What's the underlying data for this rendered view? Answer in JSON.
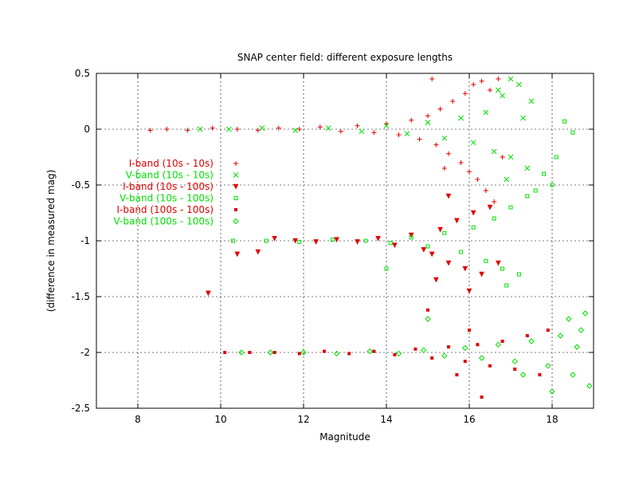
{
  "chart_data": {
    "type": "scatter",
    "title": "SNAP center field: different exposure lengths",
    "xlabel": "Magnitude",
    "ylabel": "(difference in measured mag)",
    "xlim": [
      7,
      19
    ],
    "ylim": [
      -2.5,
      0.5
    ],
    "xticks": [
      8,
      10,
      12,
      14,
      16,
      18
    ],
    "xtick_labels": [
      "8",
      "10",
      "12",
      "14",
      "16",
      "18"
    ],
    "yticks": [
      0.5,
      0,
      -0.5,
      -1,
      -1.5,
      -2,
      -2.5
    ],
    "ytick_labels": [
      "0.5",
      "0",
      "-0.5",
      "-1",
      "-1.5",
      "-2",
      "-2.5"
    ],
    "grid": true,
    "legend_position": "left",
    "series": [
      {
        "name": "I-band (10s - 10s)",
        "color": "#e00000",
        "marker": "plus",
        "points": [
          [
            8.3,
            -0.01
          ],
          [
            8.7,
            0.0
          ],
          [
            9.2,
            -0.01
          ],
          [
            9.8,
            0.01
          ],
          [
            10.4,
            0.0
          ],
          [
            10.9,
            -0.01
          ],
          [
            11.4,
            0.01
          ],
          [
            11.9,
            0.0
          ],
          [
            12.4,
            0.02
          ],
          [
            12.9,
            -0.02
          ],
          [
            13.3,
            0.03
          ],
          [
            13.7,
            -0.03
          ],
          [
            14.0,
            0.05
          ],
          [
            14.3,
            -0.05
          ],
          [
            14.6,
            0.08
          ],
          [
            14.8,
            -0.09
          ],
          [
            15.0,
            0.12
          ],
          [
            15.2,
            -0.14
          ],
          [
            15.3,
            0.18
          ],
          [
            15.5,
            -0.22
          ],
          [
            15.6,
            0.25
          ],
          [
            15.8,
            -0.3
          ],
          [
            15.9,
            0.32
          ],
          [
            16.0,
            -0.38
          ],
          [
            16.1,
            0.4
          ],
          [
            16.2,
            -0.45
          ],
          [
            16.3,
            0.43
          ],
          [
            16.4,
            -0.55
          ],
          [
            16.5,
            0.35
          ],
          [
            16.6,
            -0.65
          ],
          [
            16.7,
            0.45
          ],
          [
            15.1,
            0.45
          ],
          [
            15.4,
            -0.35
          ],
          [
            16.8,
            -0.25
          ]
        ]
      },
      {
        "name": "V-band (10s - 10s)",
        "color": "#00e000",
        "marker": "cross",
        "points": [
          [
            9.5,
            0.0
          ],
          [
            10.2,
            0.0
          ],
          [
            11.0,
            0.01
          ],
          [
            11.8,
            -0.01
          ],
          [
            12.6,
            0.01
          ],
          [
            13.4,
            -0.02
          ],
          [
            14.0,
            0.03
          ],
          [
            14.5,
            -0.04
          ],
          [
            15.0,
            0.06
          ],
          [
            15.4,
            -0.08
          ],
          [
            15.8,
            0.1
          ],
          [
            16.1,
            -0.12
          ],
          [
            16.4,
            0.15
          ],
          [
            16.6,
            -0.2
          ],
          [
            16.8,
            0.3
          ],
          [
            17.0,
            -0.25
          ],
          [
            17.2,
            0.4
          ],
          [
            17.4,
            -0.35
          ],
          [
            17.0,
            0.45
          ],
          [
            16.9,
            -0.45
          ],
          [
            17.3,
            0.1
          ],
          [
            16.7,
            0.35
          ],
          [
            17.5,
            0.25
          ]
        ]
      },
      {
        "name": "I-band (10s - 100s)",
        "color": "#e00000",
        "marker": "tri",
        "points": [
          [
            9.7,
            -1.47
          ],
          [
            10.4,
            -1.12
          ],
          [
            10.9,
            -1.1
          ],
          [
            11.3,
            -0.98
          ],
          [
            11.8,
            -1.0
          ],
          [
            12.3,
            -1.01
          ],
          [
            12.8,
            -0.99
          ],
          [
            13.3,
            -1.01
          ],
          [
            13.8,
            -0.98
          ],
          [
            14.2,
            -1.04
          ],
          [
            14.6,
            -0.95
          ],
          [
            14.9,
            -1.08
          ],
          [
            15.1,
            -1.12
          ],
          [
            15.3,
            -0.9
          ],
          [
            15.5,
            -1.2
          ],
          [
            15.7,
            -0.82
          ],
          [
            15.9,
            -1.25
          ],
          [
            16.1,
            -0.75
          ],
          [
            16.3,
            -1.3
          ],
          [
            16.5,
            -0.7
          ],
          [
            16.7,
            -1.2
          ],
          [
            15.2,
            -1.35
          ],
          [
            15.5,
            -0.6
          ],
          [
            16.0,
            -1.45
          ]
        ]
      },
      {
        "name": "V-band (10s - 100s)",
        "color": "#00e000",
        "marker": "square",
        "points": [
          [
            10.3,
            -1.0
          ],
          [
            11.1,
            -1.0
          ],
          [
            11.9,
            -1.01
          ],
          [
            12.7,
            -0.99
          ],
          [
            13.5,
            -1.0
          ],
          [
            14.1,
            -1.02
          ],
          [
            14.6,
            -0.97
          ],
          [
            15.0,
            -1.05
          ],
          [
            15.4,
            -0.93
          ],
          [
            15.8,
            -1.1
          ],
          [
            16.1,
            -0.88
          ],
          [
            16.4,
            -1.18
          ],
          [
            16.6,
            -0.8
          ],
          [
            16.8,
            -1.25
          ],
          [
            17.0,
            -0.7
          ],
          [
            17.2,
            -1.3
          ],
          [
            17.4,
            -0.6
          ],
          [
            17.6,
            -0.55
          ],
          [
            17.8,
            -0.4
          ],
          [
            18.1,
            -0.25
          ],
          [
            18.0,
            -0.5
          ],
          [
            18.5,
            -0.03
          ],
          [
            14.0,
            -1.25
          ],
          [
            16.9,
            -1.4
          ],
          [
            18.3,
            0.07
          ]
        ]
      },
      {
        "name": "I-band (100s - 100s)",
        "color": "#e00000",
        "marker": "filled-square",
        "points": [
          [
            10.1,
            -2.0
          ],
          [
            10.7,
            -2.0
          ],
          [
            11.3,
            -2.0
          ],
          [
            11.9,
            -2.01
          ],
          [
            12.5,
            -1.99
          ],
          [
            13.1,
            -2.01
          ],
          [
            13.7,
            -1.99
          ],
          [
            14.2,
            -2.02
          ],
          [
            14.7,
            -1.97
          ],
          [
            15.1,
            -2.05
          ],
          [
            15.5,
            -1.95
          ],
          [
            15.9,
            -2.08
          ],
          [
            16.2,
            -1.93
          ],
          [
            16.5,
            -2.12
          ],
          [
            16.8,
            -1.9
          ],
          [
            17.1,
            -2.15
          ],
          [
            17.4,
            -1.85
          ],
          [
            17.7,
            -2.2
          ],
          [
            17.9,
            -1.8
          ],
          [
            16.3,
            -2.4
          ],
          [
            15.7,
            -2.2
          ],
          [
            15.0,
            -1.62
          ],
          [
            16.0,
            -1.8
          ]
        ]
      },
      {
        "name": "V-band (100s - 100s)",
        "color": "#00e000",
        "marker": "diamond",
        "points": [
          [
            10.5,
            -2.0
          ],
          [
            11.2,
            -2.0
          ],
          [
            12.0,
            -2.0
          ],
          [
            12.8,
            -2.01
          ],
          [
            13.6,
            -1.99
          ],
          [
            14.3,
            -2.01
          ],
          [
            14.9,
            -1.98
          ],
          [
            15.4,
            -2.03
          ],
          [
            15.9,
            -1.96
          ],
          [
            16.3,
            -2.05
          ],
          [
            16.7,
            -1.93
          ],
          [
            17.1,
            -2.08
          ],
          [
            17.5,
            -1.9
          ],
          [
            17.9,
            -2.12
          ],
          [
            18.2,
            -1.85
          ],
          [
            18.5,
            -2.2
          ],
          [
            18.7,
            -1.8
          ],
          [
            18.9,
            -2.3
          ],
          [
            18.4,
            -1.7
          ],
          [
            18.0,
            -2.35
          ],
          [
            18.8,
            -1.65
          ],
          [
            17.3,
            -2.2
          ],
          [
            15.0,
            -1.7
          ],
          [
            18.6,
            -1.95
          ]
        ]
      }
    ]
  }
}
